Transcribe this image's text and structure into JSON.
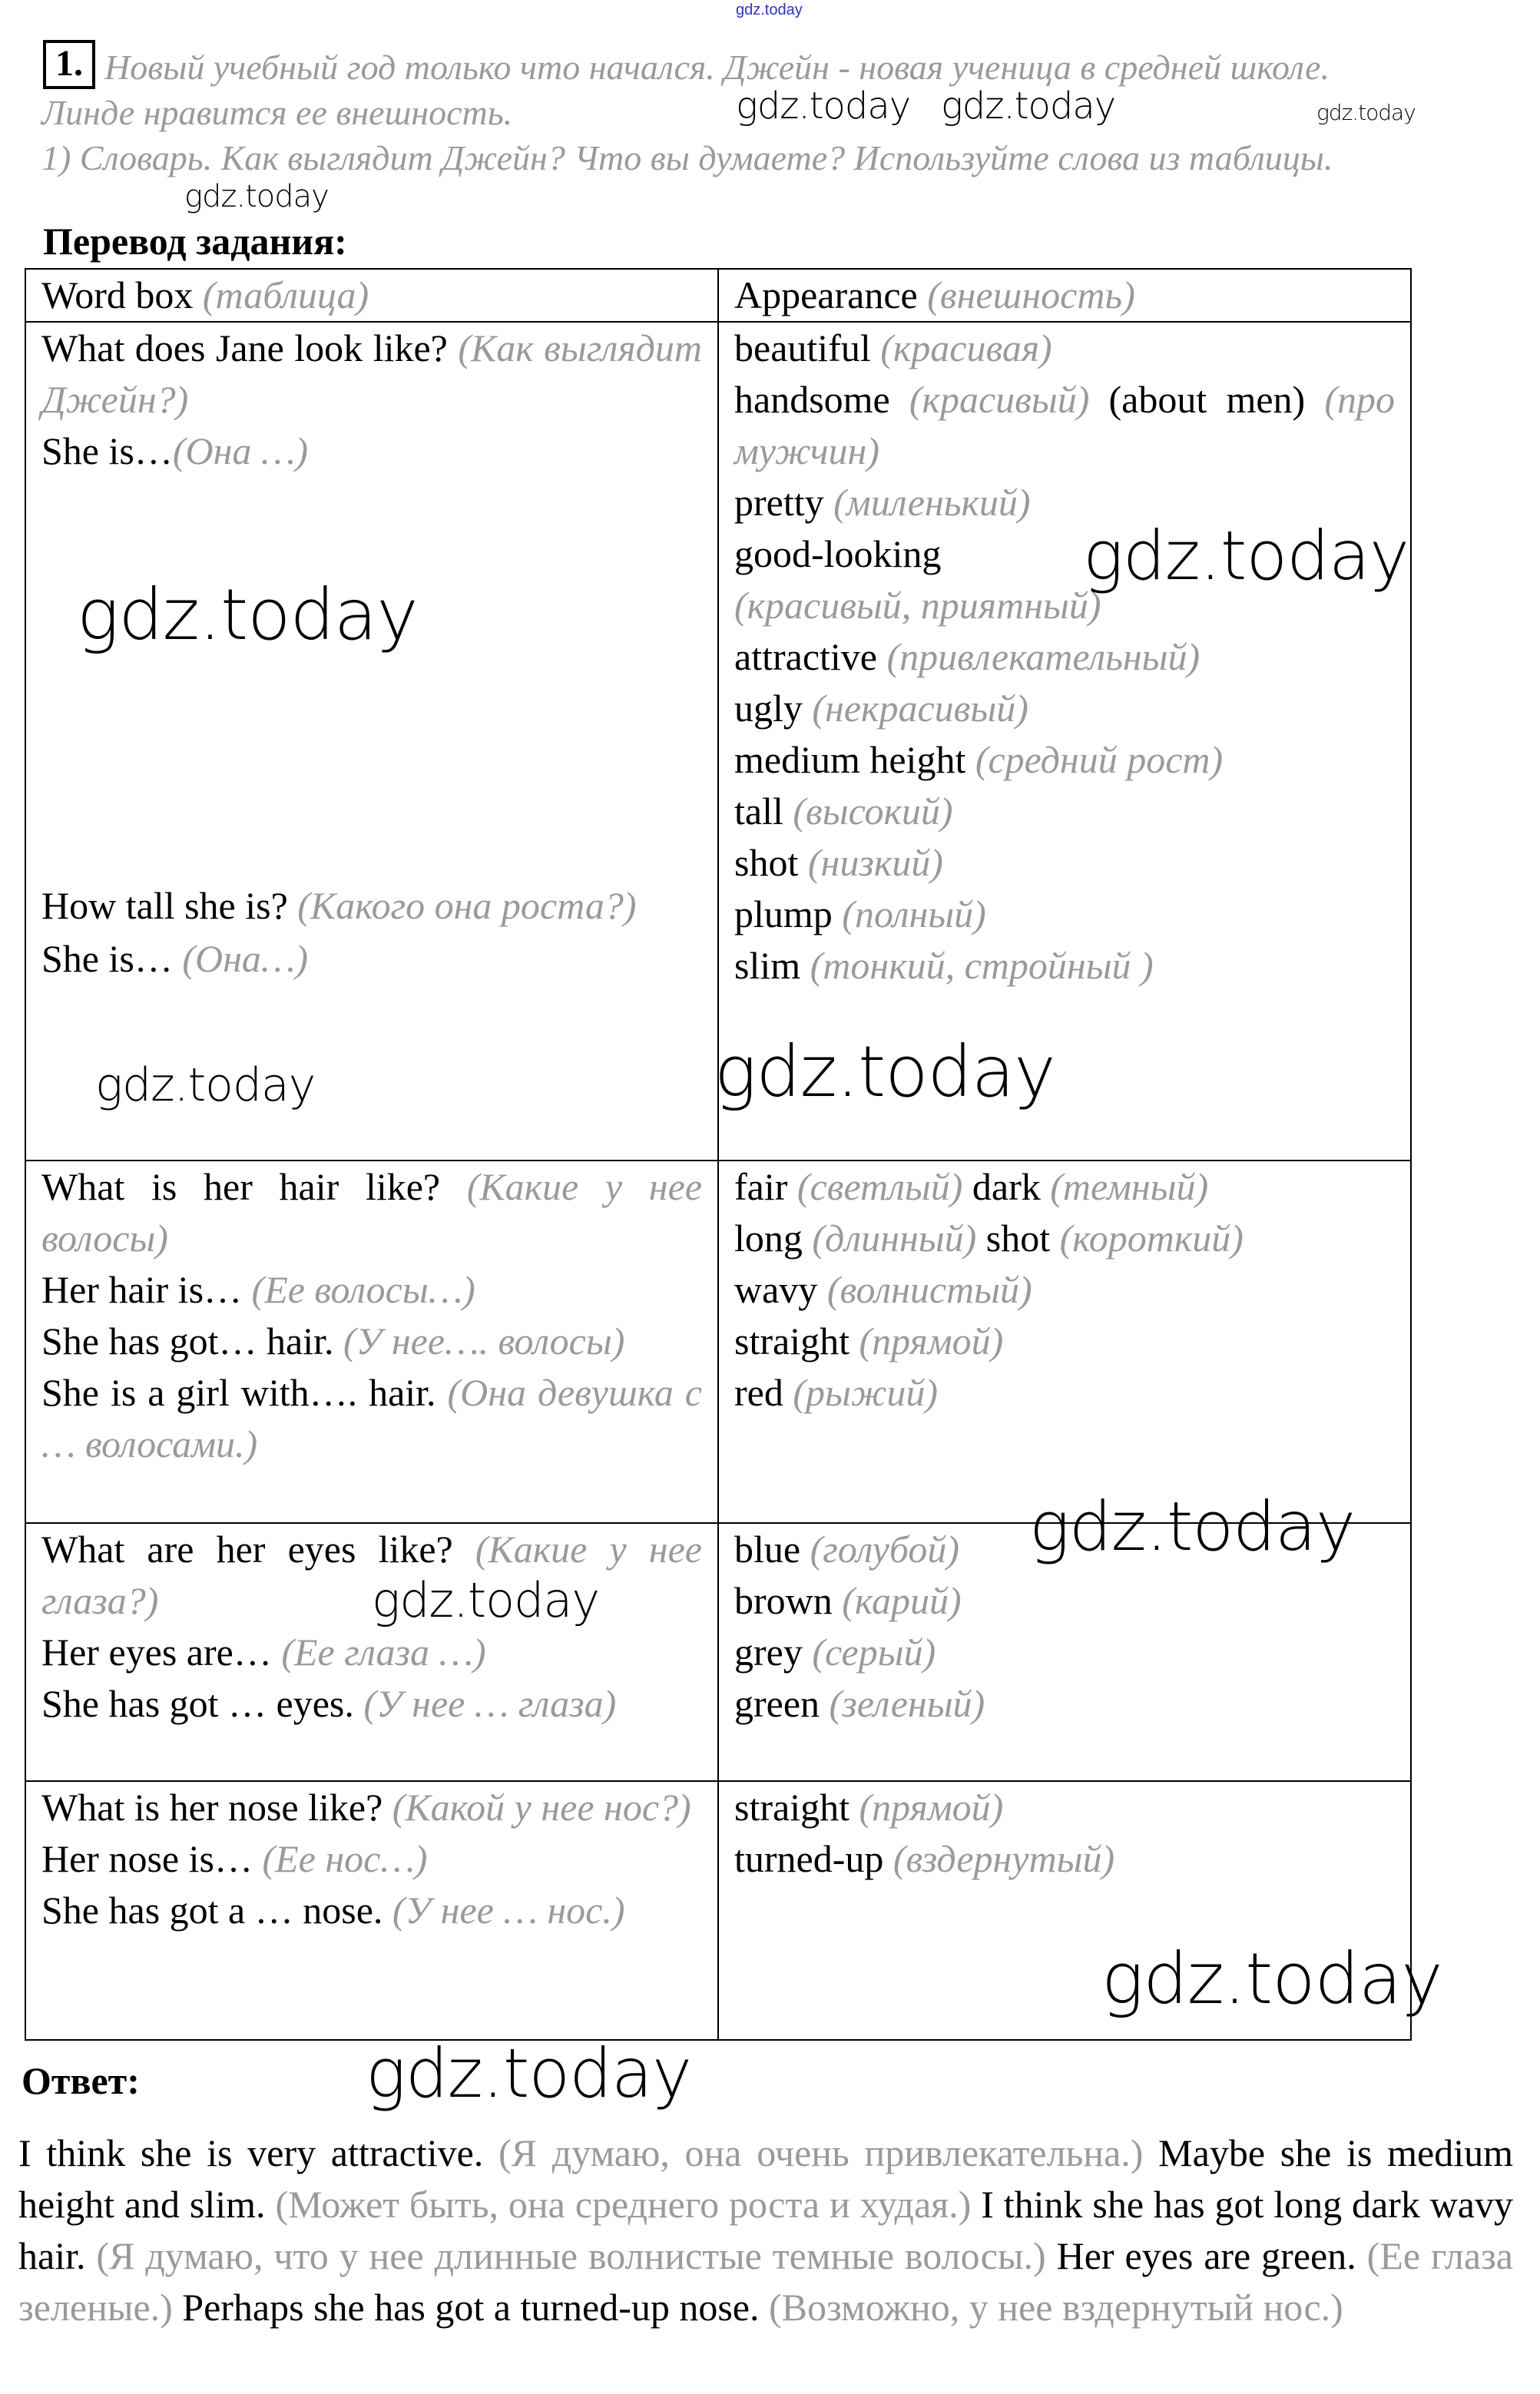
{
  "top_watermark": "gdz.today",
  "task": {
    "number": "1.",
    "intro_lines": [
      "Новый учебный год только что начался. Джейн - новая ученица в средней школе.",
      "Линде нравится ее внешность.",
      "1) Словарь. Как выглядит Джейн? Что вы думаете? Используйте слова из таблицы."
    ],
    "translation_title": "Перевод задания:"
  },
  "table": {
    "header": [
      [
        {
          "t": "Word box "
        },
        {
          "t": "(таблица)",
          "ru": true
        }
      ],
      [
        {
          "t": "Appearance "
        },
        {
          "t": "(внешность)",
          "ru": true
        }
      ]
    ],
    "rows": [
      {
        "left": [
          [
            [
              {
                "t": "What does Jane look like? "
              },
              {
                "t": "(Как выглядит Джейн?)",
                "ru": true
              }
            ],
            [
              {
                "t": "She is…"
              },
              {
                "t": "(Она …)",
                "ru": true
              }
            ]
          ],
          [
            [
              {
                "t": "How tall she is? "
              },
              {
                "t": "(Какого она роста?)",
                "ru": true
              }
            ]
          ],
          [
            [
              {
                "t": "She is… "
              },
              {
                "t": "(Она…)",
                "ru": true
              }
            ]
          ]
        ],
        "right": [
          [
            [
              {
                "t": "beautiful "
              },
              {
                "t": "(красивая)",
                "ru": true
              }
            ],
            [
              {
                "t": "handsome "
              },
              {
                "t": "(красивый)",
                "ru": true
              },
              {
                "t": " (about men) "
              },
              {
                "t": "(про мужчин)",
                "ru": true
              }
            ],
            [
              {
                "t": "pretty "
              },
              {
                "t": "(миленький)",
                "ru": true
              }
            ],
            [
              {
                "t": "good-looking "
              },
              {
                "t": "(красивый, приятный)",
                "ru": true
              }
            ],
            [
              {
                "t": "attractive "
              },
              {
                "t": "(привлекательный)",
                "ru": true
              }
            ],
            [
              {
                "t": "ugly "
              },
              {
                "t": "(некрасивый)",
                "ru": true
              }
            ],
            [
              {
                "t": "medium height "
              },
              {
                "t": "(средний рост)",
                "ru": true
              }
            ],
            [
              {
                "t": "tall "
              },
              {
                "t": "(высокий)",
                "ru": true
              }
            ],
            [
              {
                "t": "shot "
              },
              {
                "t": "(низкий)",
                "ru": true
              }
            ],
            [
              {
                "t": "plump "
              },
              {
                "t": "(полный)",
                "ru": true
              }
            ],
            [
              {
                "t": "slim "
              },
              {
                "t": "(тонкий, стройный )",
                "ru": true
              }
            ]
          ]
        ]
      },
      {
        "left": [
          [
            [
              {
                "t": "What is her hair like? "
              },
              {
                "t": "(Какие у нее волосы)",
                "ru": true
              }
            ],
            [
              {
                "t": "Her hair is… "
              },
              {
                "t": "(Ее волосы…)",
                "ru": true
              }
            ],
            [
              {
                "t": "She has got… hair. "
              },
              {
                "t": "(У нее…. волосы)",
                "ru": true
              }
            ],
            [
              {
                "t": "She is a girl with…. hair. "
              },
              {
                "t": "(Она девушка с … волосами.)",
                "ru": true
              }
            ]
          ]
        ],
        "right": [
          [
            [
              {
                "t": "fair "
              },
              {
                "t": "(светлый)",
                "ru": true
              },
              {
                "t": " dark "
              },
              {
                "t": "(темный)",
                "ru": true
              }
            ],
            [
              {
                "t": "long "
              },
              {
                "t": "(длинный)",
                "ru": true
              },
              {
                "t": " shot "
              },
              {
                "t": "(короткий)",
                "ru": true
              }
            ],
            [
              {
                "t": "wavy "
              },
              {
                "t": "(волнистый)",
                "ru": true
              }
            ],
            [
              {
                "t": "straight "
              },
              {
                "t": "(прямой)",
                "ru": true
              }
            ],
            [
              {
                "t": "red "
              },
              {
                "t": "(рыжий)",
                "ru": true
              }
            ]
          ]
        ]
      },
      {
        "left": [
          [
            [
              {
                "t": "What are her eyes like? "
              },
              {
                "t": "(Какие у нее глаза?)",
                "ru": true
              }
            ],
            [
              {
                "t": "Her eyes are… "
              },
              {
                "t": "(Ее глаза …)",
                "ru": true
              }
            ],
            [
              {
                "t": "She has got … eyes. "
              },
              {
                "t": "(У нее … глаза)",
                "ru": true
              }
            ]
          ]
        ],
        "right": [
          [
            [
              {
                "t": "blue "
              },
              {
                "t": "(голубой)",
                "ru": true
              }
            ],
            [
              {
                "t": "brown "
              },
              {
                "t": "(карий)",
                "ru": true
              }
            ],
            [
              {
                "t": "grey "
              },
              {
                "t": "(серый)",
                "ru": true
              }
            ],
            [
              {
                "t": "green "
              },
              {
                "t": "(зеленый)",
                "ru": true
              }
            ]
          ]
        ]
      },
      {
        "left": [
          [
            [
              {
                "t": "What is her nose like? "
              },
              {
                "t": "(Какой у нее нос?)",
                "ru": true
              }
            ],
            [
              {
                "t": "Her nose is… "
              },
              {
                "t": "(Ее нос…)",
                "ru": true
              }
            ],
            [
              {
                "t": "She has got a … nose. "
              },
              {
                "t": "(У нее … нос.)",
                "ru": true
              }
            ]
          ]
        ],
        "right": [
          [
            [
              {
                "t": "straight "
              },
              {
                "t": "(прямой)",
                "ru": true
              }
            ],
            [
              {
                "t": "turned-up "
              },
              {
                "t": "(вздернутый)",
                "ru": true
              }
            ]
          ]
        ]
      }
    ]
  },
  "answer": {
    "title": "Ответ:",
    "segments": [
      {
        "t": "I think she is very attractive. "
      },
      {
        "t": "(Я думаю, она очень привлекательна.)",
        "ru": true
      },
      {
        "t": " Maybe she is medium height and slim. "
      },
      {
        "t": "(Может быть, она среднего роста и худая.)",
        "ru": true
      },
      {
        "t": " I think she has got long dark wavy hair. "
      },
      {
        "t": "(Я думаю, что у нее длинные волнистые темные волосы.)",
        "ru": true
      },
      {
        "t": " Her eyes are green. "
      },
      {
        "t": "(Ее глаза зеленые.)",
        "ru": true
      },
      {
        "t": " Perhaps she has got a turned-up nose. "
      },
      {
        "t": "(Возможно, у нее вздернутый нос.)",
        "ru": true
      }
    ]
  },
  "watermarks": [
    "gdz.today",
    "gdz.today",
    "gdz.today",
    "gdz.today",
    "gdz.today",
    "gdz.today",
    "gdz.today",
    "gdz.today",
    "gdz.today",
    "gdz.today",
    "gdz.today"
  ]
}
